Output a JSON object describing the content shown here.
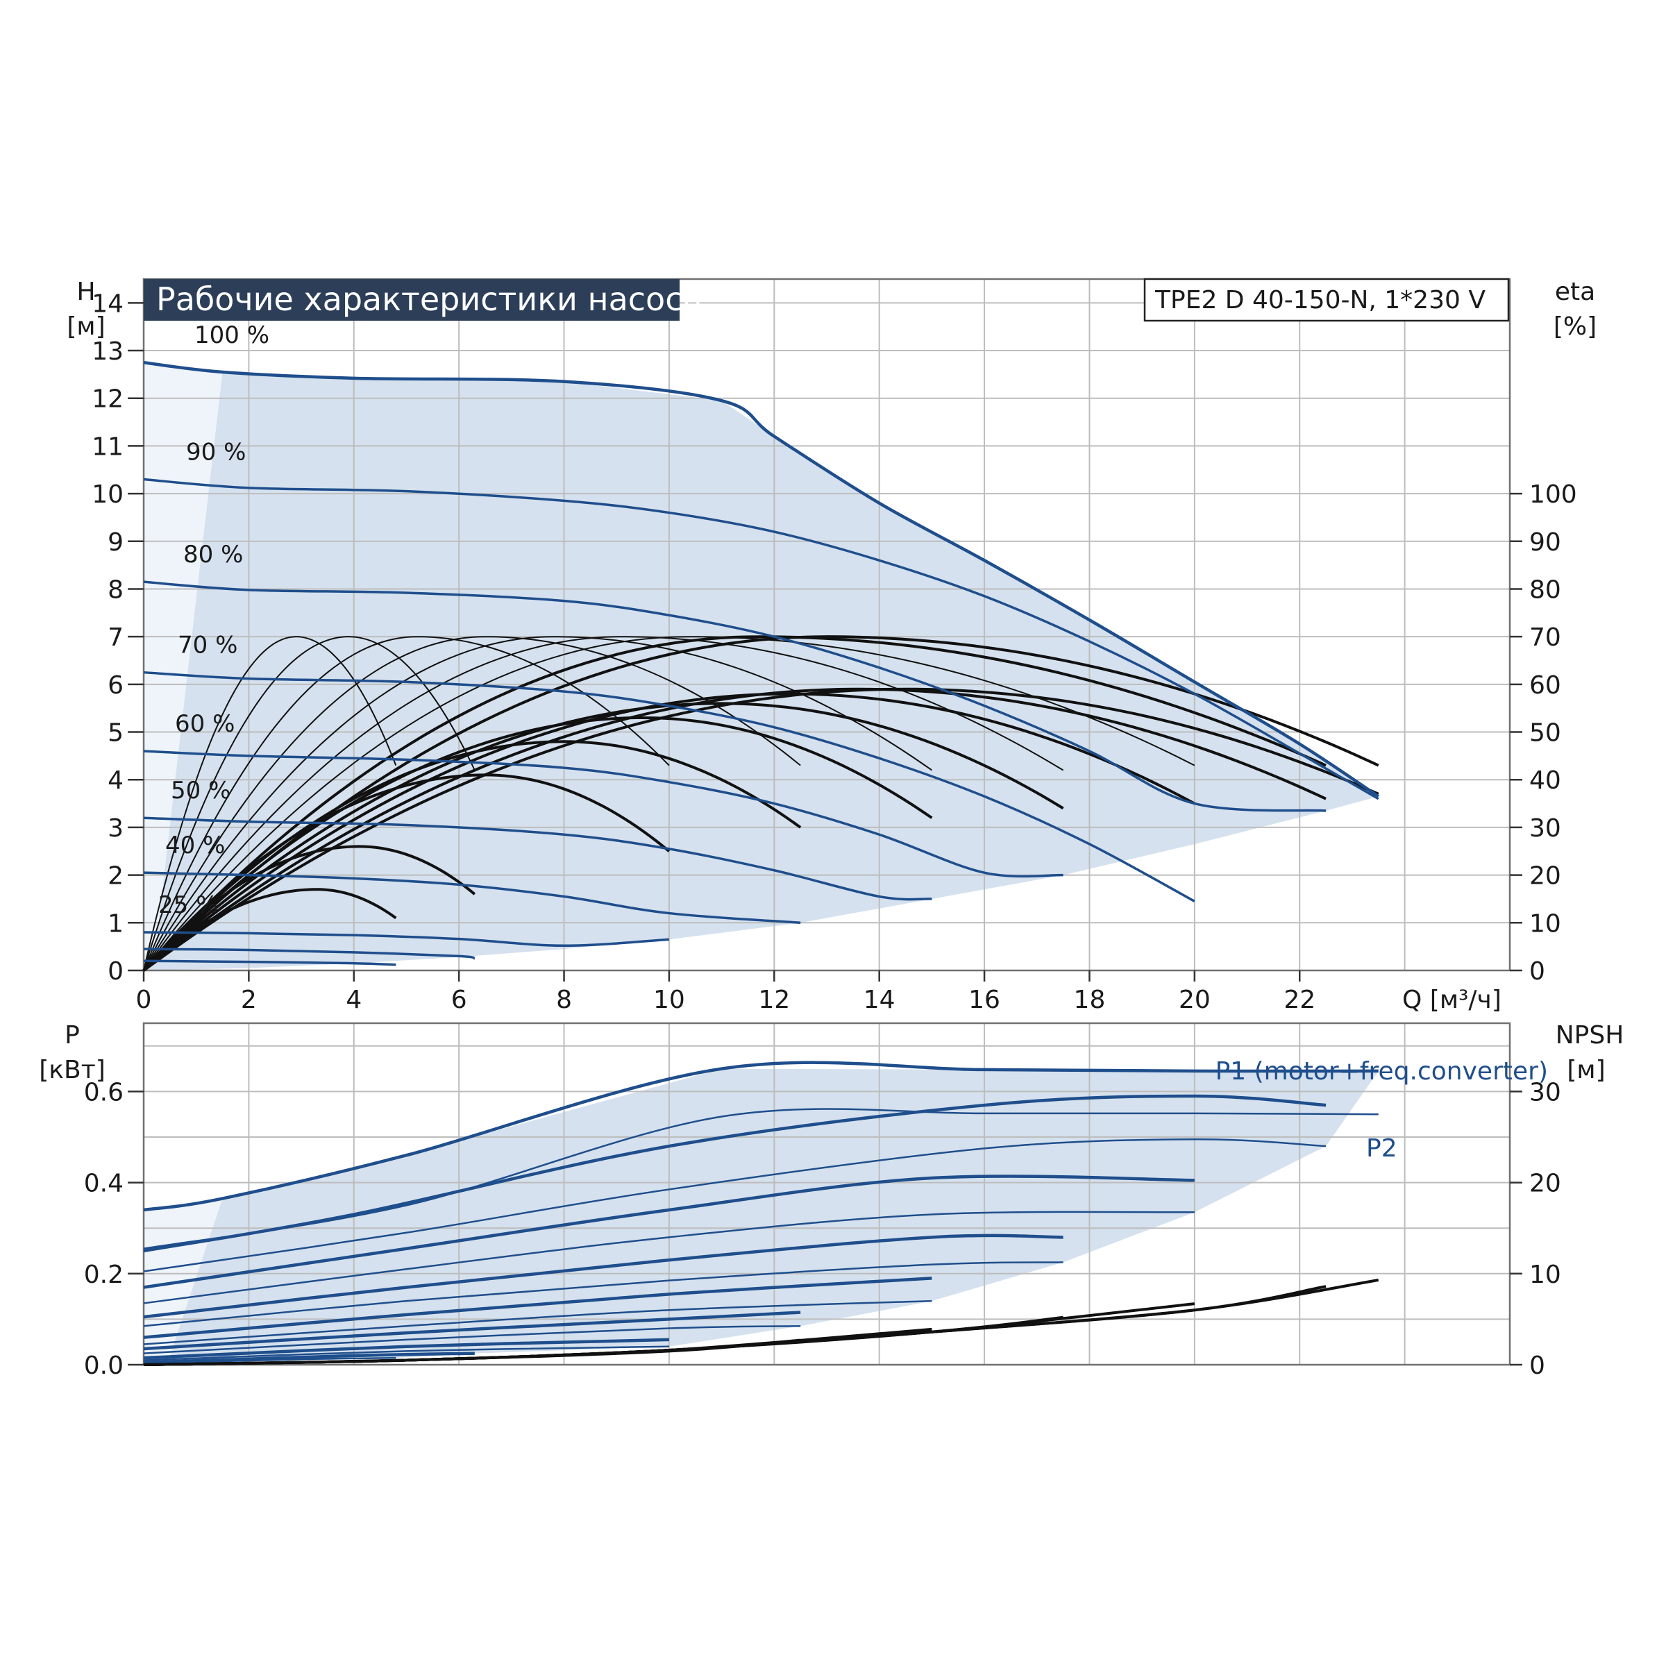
{
  "colors": {
    "frame": "#707070",
    "grid": "#bdbdbd",
    "envelope_fill": "#d5e1ee",
    "envelope_light": "#eef4fa",
    "curve_blue": "#1f4e8c",
    "efficiency": "#111111",
    "title_bg": "#2c3e58",
    "title_text": "#ffffff"
  },
  "header": {
    "title": "Рабочие характеристики насоса",
    "model": "TPE2 D 40-150-N, 1*230 V"
  },
  "chart_data": [
    {
      "id": "head",
      "type": "line",
      "title": "Рабочие характеристики насоса",
      "ylabel_top": "H",
      "ylabel_unit": "[м]",
      "y2label_top": "eta",
      "y2label_unit": "[%]",
      "xlabel": "Q [м³/ч]",
      "xlim": [
        0,
        26
      ],
      "ylim": [
        0,
        14.5
      ],
      "x_ticks": [
        "0",
        "2",
        "4",
        "6",
        "8",
        "10",
        "12",
        "14",
        "16",
        "18",
        "20",
        "22"
      ],
      "y_ticks": [
        "0",
        "1",
        "2",
        "3",
        "4",
        "5",
        "6",
        "7",
        "8",
        "9",
        "10",
        "11",
        "12",
        "13",
        "14"
      ],
      "y2_ticks": [
        "0",
        "10",
        "20",
        "30",
        "40",
        "50",
        "60",
        "70",
        "80",
        "90",
        "100"
      ],
      "grid": true,
      "speed_curves": [
        {
          "name": "100 %",
          "x": [
            0,
            1.5,
            4,
            8,
            11,
            12,
            14,
            16,
            18,
            20,
            22,
            23.5
          ],
          "y": [
            12.75,
            12.55,
            12.42,
            12.35,
            11.95,
            11.2,
            9.8,
            8.6,
            7.35,
            6.05,
            4.75,
            3.65
          ]
        },
        {
          "name": "90 %",
          "x": [
            0,
            2,
            5,
            8,
            10,
            12,
            14,
            16,
            18,
            20,
            22,
            23.5
          ],
          "y": [
            10.3,
            10.12,
            10.05,
            9.85,
            9.6,
            9.2,
            8.6,
            7.85,
            6.9,
            5.8,
            4.55,
            3.6
          ]
        },
        {
          "name": "80 %",
          "x": [
            0,
            2,
            5,
            8,
            10,
            12,
            14,
            16,
            18,
            20,
            22.5
          ],
          "y": [
            8.15,
            7.98,
            7.92,
            7.75,
            7.45,
            7.0,
            6.35,
            5.55,
            4.6,
            3.5,
            3.35
          ]
        },
        {
          "name": "70 %",
          "x": [
            0,
            2,
            5,
            8,
            10,
            12,
            14,
            16,
            18,
            20
          ],
          "y": [
            6.25,
            6.12,
            6.05,
            5.85,
            5.55,
            5.1,
            4.45,
            3.65,
            2.65,
            1.45
          ]
        },
        {
          "name": "60 %",
          "x": [
            0,
            2,
            5,
            8,
            10,
            12,
            14,
            16,
            17.5
          ],
          "y": [
            4.6,
            4.5,
            4.42,
            4.25,
            3.95,
            3.5,
            2.85,
            2.05,
            2.0
          ]
        },
        {
          "name": "50 %",
          "x": [
            0,
            2,
            5,
            8,
            10,
            12,
            14,
            15
          ],
          "y": [
            3.2,
            3.12,
            3.05,
            2.85,
            2.55,
            2.1,
            1.55,
            1.5
          ]
        },
        {
          "name": "40 %",
          "x": [
            0,
            2,
            4,
            6,
            8,
            10,
            12.5
          ],
          "y": [
            2.05,
            2.0,
            1.93,
            1.8,
            1.55,
            1.2,
            1.0
          ]
        },
        {
          "name": "25 %",
          "x": [
            0,
            2,
            4,
            6,
            8,
            10
          ],
          "y": [
            0.8,
            0.78,
            0.74,
            0.66,
            0.52,
            0.65
          ]
        },
        {
          "name": "",
          "x": [
            0,
            2,
            4,
            6,
            6.3
          ],
          "y": [
            0.45,
            0.43,
            0.38,
            0.3,
            0.25
          ]
        },
        {
          "name": "",
          "x": [
            0,
            2,
            4,
            4.8
          ],
          "y": [
            0.2,
            0.18,
            0.15,
            0.12
          ]
        }
      ],
      "efficiency_curves": [
        {
          "peak_q": 2.9,
          "peak_eta": 70,
          "end_q": 4.8,
          "end_eta": 43
        },
        {
          "peak_q": 3.9,
          "peak_eta": 70,
          "end_q": 6.3,
          "end_eta": 42
        },
        {
          "peak_q": 5.2,
          "peak_eta": 70,
          "end_q": 10,
          "end_eta": 43
        },
        {
          "peak_q": 6.5,
          "peak_eta": 70,
          "end_q": 12.5,
          "end_eta": 43
        },
        {
          "peak_q": 7.8,
          "peak_eta": 70,
          "end_q": 15,
          "end_eta": 42
        },
        {
          "peak_q": 9.1,
          "peak_eta": 70,
          "end_q": 17.5,
          "end_eta": 42
        },
        {
          "peak_q": 10.4,
          "peak_eta": 70,
          "end_q": 20,
          "end_eta": 43
        },
        {
          "peak_q": 11.7,
          "peak_eta": 70,
          "end_q": 22.5,
          "end_eta": 43
        },
        {
          "peak_q": 13.0,
          "peak_eta": 70,
          "end_q": 23.5,
          "end_eta": 43
        },
        {
          "peak_q": 3.3,
          "peak_eta": 17,
          "end_q": 4.8,
          "end_eta": 11
        },
        {
          "peak_q": 4.1,
          "peak_eta": 26,
          "end_q": 6.3,
          "end_eta": 16
        },
        {
          "peak_q": 6.5,
          "peak_eta": 41,
          "end_q": 10,
          "end_eta": 25
        },
        {
          "peak_q": 8.0,
          "peak_eta": 48,
          "end_q": 12.5,
          "end_eta": 30
        },
        {
          "peak_q": 9.5,
          "peak_eta": 53,
          "end_q": 15,
          "end_eta": 32
        },
        {
          "peak_q": 11.0,
          "peak_eta": 56,
          "end_q": 17.5,
          "end_eta": 34
        },
        {
          "peak_q": 12.3,
          "peak_eta": 58,
          "end_q": 20,
          "end_eta": 35
        },
        {
          "peak_q": 13.6,
          "peak_eta": 59,
          "end_q": 22.5,
          "end_eta": 36
        },
        {
          "peak_q": 14.5,
          "peak_eta": 59,
          "end_q": 23.5,
          "end_eta": 37
        }
      ],
      "envelope": {
        "x": [
          0,
          1.5,
          4,
          8,
          11,
          12,
          14,
          16,
          18,
          20,
          22,
          23.5,
          22.5,
          20,
          17.5,
          15,
          12.5,
          10,
          8,
          6,
          4,
          2,
          0
        ],
        "y": [
          12.75,
          12.55,
          12.42,
          12.35,
          11.95,
          11.2,
          9.8,
          8.6,
          7.35,
          6.05,
          4.75,
          3.65,
          3.35,
          2.65,
          2.0,
          1.5,
          1.0,
          0.65,
          0.45,
          0.28,
          0.15,
          0.05,
          0
        ]
      }
    },
    {
      "id": "power",
      "type": "line",
      "ylabel_top": "P",
      "ylabel_unit": "[кВт]",
      "y2label_top": "NPSH",
      "y2label_unit": "[м]",
      "xlim": [
        0,
        26
      ],
      "ylim": [
        0,
        0.75
      ],
      "y_ticks": [
        "0.0",
        "0.2",
        "0.4",
        "0.6"
      ],
      "y2_ticks": [
        "0",
        "10",
        "20",
        "30"
      ],
      "grid": true,
      "series_labels": [
        "P1 (motor+freq.converter)",
        "P2"
      ],
      "power_curves": [
        {
          "x": [
            0,
            1.5,
            5,
            11,
            16,
            20,
            23.5
          ],
          "y": [
            0.34,
            0.365,
            0.46,
            0.65,
            0.648,
            0.645,
            0.645
          ]
        },
        {
          "x": [
            0,
            5,
            11,
            16,
            20,
            23.5
          ],
          "y": [
            0.255,
            0.35,
            0.545,
            0.552,
            0.552,
            0.55
          ]
        },
        {
          "x": [
            0,
            4,
            10,
            16,
            20,
            22.5
          ],
          "y": [
            0.25,
            0.33,
            0.48,
            0.57,
            0.59,
            0.57
          ]
        },
        {
          "x": [
            0,
            5,
            10,
            16,
            20,
            22.5
          ],
          "y": [
            0.205,
            0.29,
            0.385,
            0.475,
            0.495,
            0.48
          ]
        },
        {
          "x": [
            0,
            5,
            10,
            15,
            20
          ],
          "y": [
            0.17,
            0.255,
            0.34,
            0.41,
            0.405
          ]
        },
        {
          "x": [
            0,
            5,
            10,
            15,
            20
          ],
          "y": [
            0.135,
            0.21,
            0.28,
            0.33,
            0.335
          ]
        },
        {
          "x": [
            0,
            5,
            10,
            15,
            17.5
          ],
          "y": [
            0.105,
            0.17,
            0.23,
            0.28,
            0.28
          ]
        },
        {
          "x": [
            0,
            5,
            10,
            15,
            17.5
          ],
          "y": [
            0.085,
            0.14,
            0.185,
            0.22,
            0.225
          ]
        },
        {
          "x": [
            0,
            5,
            10,
            15
          ],
          "y": [
            0.06,
            0.11,
            0.155,
            0.19
          ]
        },
        {
          "x": [
            0,
            5,
            10,
            15
          ],
          "y": [
            0.045,
            0.085,
            0.12,
            0.14
          ]
        },
        {
          "x": [
            0,
            5,
            10,
            12.5
          ],
          "y": [
            0.035,
            0.07,
            0.1,
            0.115
          ]
        },
        {
          "x": [
            0,
            5,
            10,
            12.5
          ],
          "y": [
            0.025,
            0.055,
            0.08,
            0.085
          ]
        },
        {
          "x": [
            0,
            5,
            10
          ],
          "y": [
            0.015,
            0.04,
            0.055
          ]
        },
        {
          "x": [
            0,
            5,
            10
          ],
          "y": [
            0.01,
            0.03,
            0.04
          ]
        },
        {
          "x": [
            0,
            4,
            6.3
          ],
          "y": [
            0.005,
            0.02,
            0.025
          ]
        },
        {
          "x": [
            0,
            3,
            4.8
          ],
          "y": [
            0.003,
            0.012,
            0.015
          ]
        }
      ],
      "npsh_curves": [
        {
          "x": [
            0,
            5,
            10,
            12.5
          ],
          "y": [
            0,
            0.5,
            1.5,
            2.7
          ]
        },
        {
          "x": [
            0,
            5,
            10,
            15
          ],
          "y": [
            0,
            0.5,
            1.6,
            3.9
          ]
        },
        {
          "x": [
            0,
            5,
            10,
            15,
            17.5
          ],
          "y": [
            0,
            0.5,
            1.6,
            3.6,
            5.2
          ]
        },
        {
          "x": [
            0,
            5,
            10,
            15,
            20
          ],
          "y": [
            0,
            0.5,
            1.6,
            3.6,
            6.7
          ]
        },
        {
          "x": [
            0,
            5,
            10,
            15,
            20,
            22.5
          ],
          "y": [
            0,
            0.5,
            1.6,
            3.6,
            6.0,
            8.6
          ]
        },
        {
          "x": [
            0,
            5,
            10,
            15,
            20,
            23.5
          ],
          "y": [
            0,
            0.5,
            1.6,
            3.6,
            6.0,
            9.3
          ]
        }
      ],
      "envelope": {
        "x": [
          0,
          1.5,
          5,
          11,
          16,
          20,
          23.5,
          22.5,
          20,
          17.5,
          15,
          12.5,
          10,
          6.3,
          4.8,
          2,
          0
        ],
        "y": [
          0.34,
          0.365,
          0.46,
          0.65,
          0.648,
          0.645,
          0.645,
          0.48,
          0.335,
          0.225,
          0.14,
          0.085,
          0.04,
          0.025,
          0.015,
          0.005,
          0
        ]
      }
    }
  ]
}
